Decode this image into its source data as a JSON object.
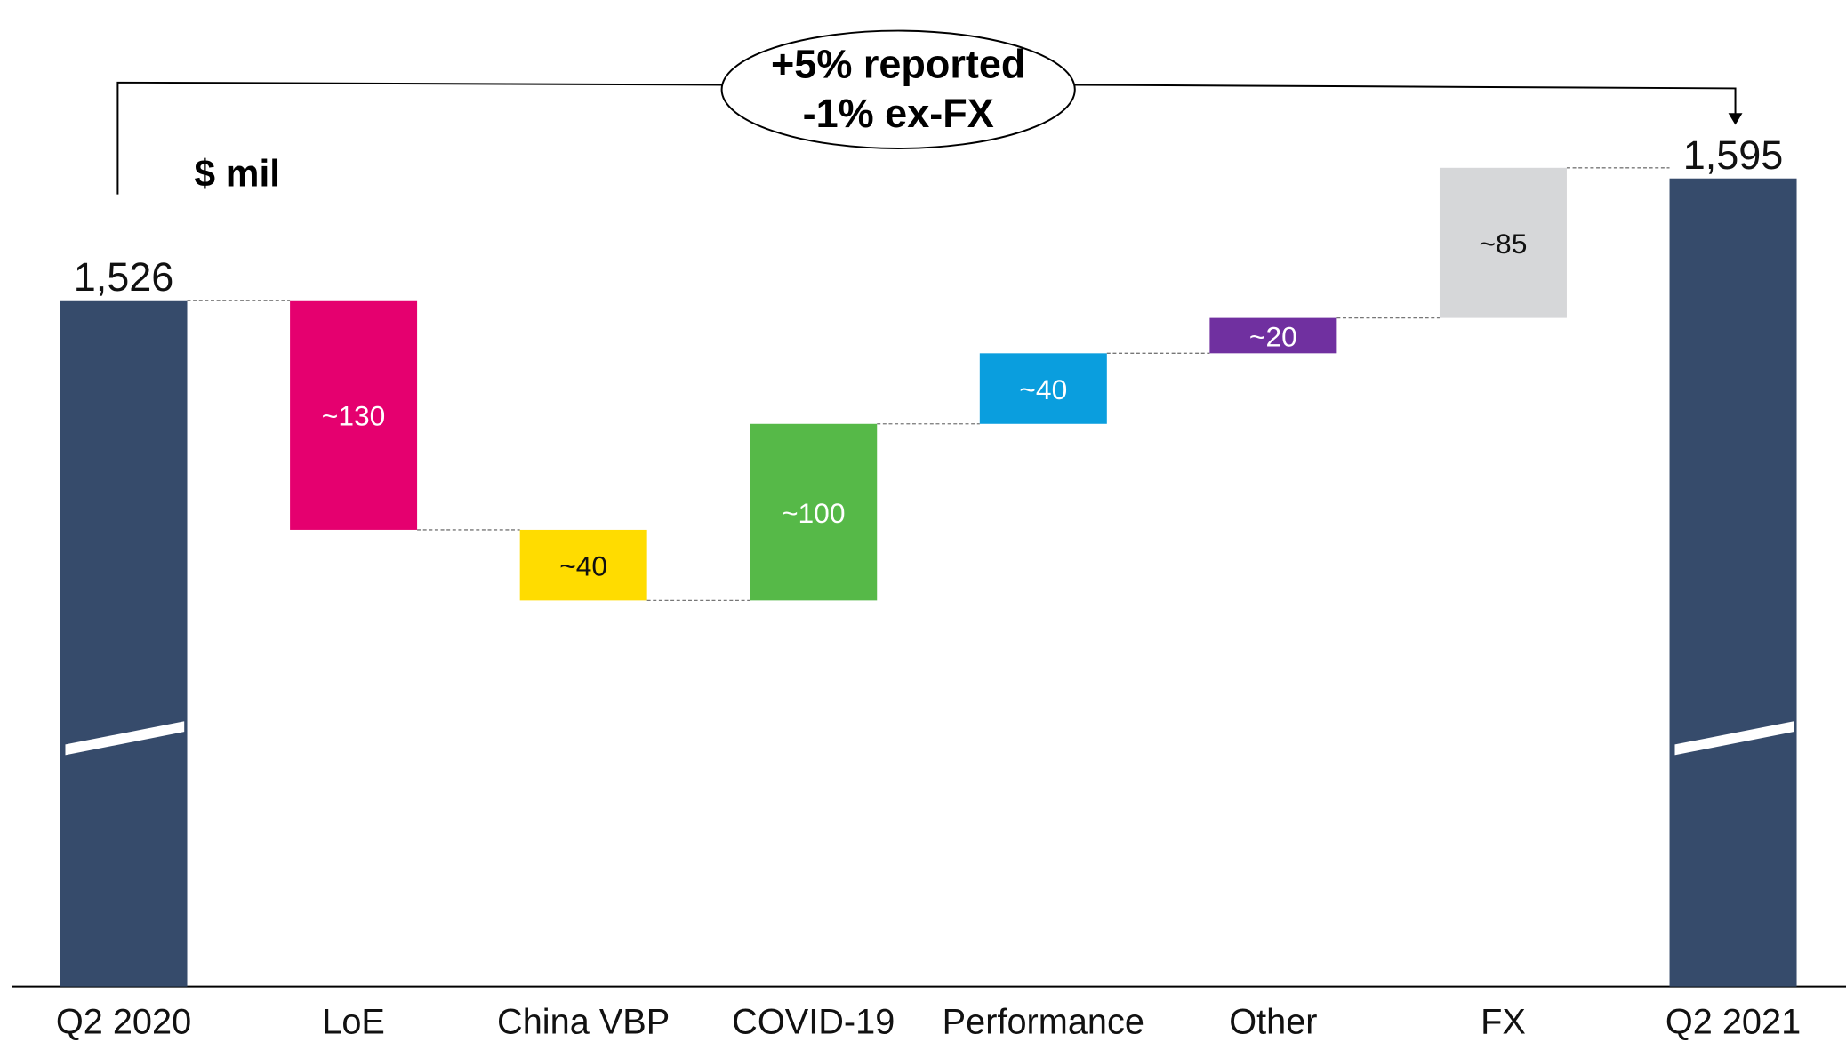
{
  "chart_data": {
    "type": "waterfall",
    "unit_label": "$ mil",
    "annotation": [
      "+5% reported",
      "-1% ex-FX"
    ],
    "categories": [
      "Q2 2020",
      "LoE",
      "China VBP",
      "COVID-19",
      "Performance",
      "Other",
      "FX",
      "Q2 2021"
    ],
    "measure": [
      "total",
      "relative",
      "relative",
      "relative",
      "relative",
      "relative",
      "relative",
      "total"
    ],
    "values": [
      1526,
      -130,
      -40,
      100,
      40,
      20,
      85,
      1595
    ],
    "value_labels": [
      "1,526",
      "~130",
      "~40",
      "~100",
      "~40",
      "~20",
      "~85",
      "1,595"
    ],
    "colors": [
      "#364b6b",
      "#e5006f",
      "#ffdc00",
      "#56b948",
      "#0a9ede",
      "#7030a0",
      "#d6d7d9",
      "#364b6b"
    ]
  }
}
